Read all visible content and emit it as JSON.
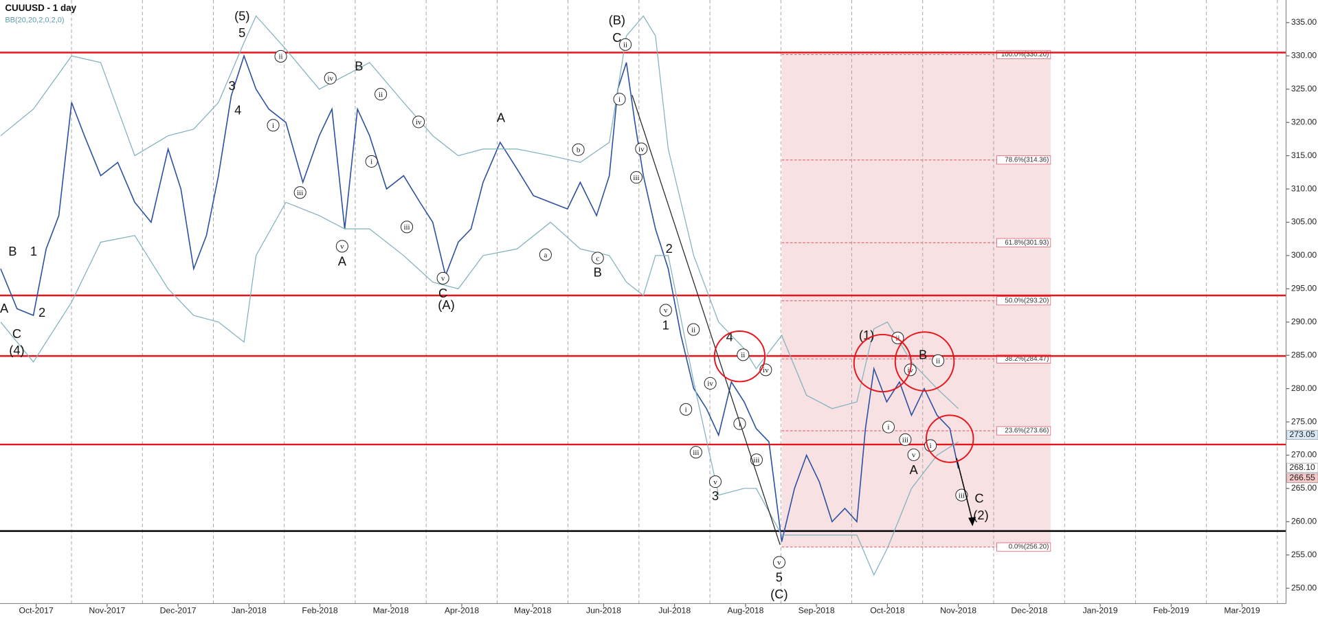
{
  "chart_data": {
    "type": "line",
    "title": "CUUUSD - 1 day",
    "subtitle": "BB(20,20,2,0,2,0)",
    "xlim": [
      -0.51,
      17.62
    ],
    "ylim": [
      247.7,
      338.4
    ],
    "xticks": [
      {
        "value": 0,
        "label": "Oct-2017"
      },
      {
        "value": 1,
        "label": "Nov-2017"
      },
      {
        "value": 2,
        "label": "Dec-2017"
      },
      {
        "value": 3,
        "label": "Jan-2018"
      },
      {
        "value": 4,
        "label": "Feb-2018"
      },
      {
        "value": 5,
        "label": "Mar-2018"
      },
      {
        "value": 6,
        "label": "Apr-2018"
      },
      {
        "value": 7,
        "label": "May-2018"
      },
      {
        "value": 8,
        "label": "Jun-2018"
      },
      {
        "value": 9,
        "label": "Jul-2018"
      },
      {
        "value": 10,
        "label": "Aug-2018"
      },
      {
        "value": 11,
        "label": "Sep-2018"
      },
      {
        "value": 12,
        "label": "Oct-2018"
      },
      {
        "value": 13,
        "label": "Nov-2018"
      },
      {
        "value": 14,
        "label": "Dec-2018"
      },
      {
        "value": 15,
        "label": "Jan-2019"
      },
      {
        "value": 16,
        "label": "Feb-2019"
      },
      {
        "value": 17,
        "label": "Mar-2019"
      }
    ],
    "yticks": [
      {
        "value": 250,
        "label": "250.00"
      },
      {
        "value": 255,
        "label": "255.00"
      },
      {
        "value": 260,
        "label": "260.00"
      },
      {
        "value": 265,
        "label": "265.00"
      },
      {
        "value": 270,
        "label": "270.00"
      },
      {
        "value": 275,
        "label": "275.00"
      },
      {
        "value": 280,
        "label": "280.00"
      },
      {
        "value": 285,
        "label": "285.00"
      },
      {
        "value": 290,
        "label": "290.00"
      },
      {
        "value": 295,
        "label": "295.00"
      },
      {
        "value": 300,
        "label": "300.00"
      },
      {
        "value": 305,
        "label": "305.00"
      },
      {
        "value": 310,
        "label": "310.00"
      },
      {
        "value": 315,
        "label": "315.00"
      },
      {
        "value": 320,
        "label": "320.00"
      },
      {
        "value": 325,
        "label": "325.00"
      },
      {
        "value": 330,
        "label": "330.00"
      },
      {
        "value": 335,
        "label": "335.00"
      }
    ],
    "grid": true,
    "series": [
      {
        "color": "#2b4fa0",
        "x": [
          -0.5,
          -0.27,
          -0.04,
          0.14,
          0.32,
          0.5,
          0.68,
          0.91,
          1.15,
          1.39,
          1.62,
          1.86,
          2.04,
          2.22,
          2.4,
          2.57,
          2.75,
          2.93,
          3.1,
          3.28,
          3.52,
          3.76,
          3.99,
          4.17,
          4.35,
          4.53,
          4.7,
          4.94,
          5.18,
          5.41,
          5.59,
          5.77,
          5.95,
          6.13,
          6.3,
          6.54,
          6.78,
          7.01,
          7.25,
          7.49,
          7.67,
          7.9,
          8.08,
          8.2,
          8.32,
          8.44,
          8.56,
          8.73,
          8.91,
          9.09,
          9.27,
          9.45,
          9.62,
          9.8,
          9.98,
          10.15,
          10.33,
          10.51,
          10.69,
          10.86,
          11.04,
          11.22,
          11.4,
          11.57,
          11.69,
          11.81,
          11.99,
          12.17,
          12.34,
          12.52,
          12.7,
          12.88,
          13.0
        ],
        "values": [
          298,
          292,
          291,
          301,
          306,
          323,
          318,
          312,
          314,
          308,
          305,
          316,
          310,
          298,
          303,
          312,
          324,
          330,
          325,
          322,
          320,
          311,
          318,
          322,
          304,
          322,
          318,
          310,
          312,
          308,
          305,
          297,
          302,
          304,
          311,
          317,
          313,
          309,
          308,
          307,
          311,
          306,
          312,
          325,
          329,
          320,
          312,
          304,
          298,
          288,
          280,
          277,
          273,
          281,
          278,
          274,
          272,
          257,
          265,
          270,
          266,
          260,
          262,
          260,
          274,
          283,
          278,
          281,
          276,
          280,
          276,
          274,
          268
        ]
      },
      {
        "color": "#7fb0bd",
        "x": [
          -0.5,
          -0.04,
          0.5,
          0.91,
          1.39,
          1.86,
          2.22,
          2.57,
          2.93,
          3.1,
          3.52,
          3.99,
          4.35,
          4.7,
          5.18,
          5.59,
          5.95,
          6.3,
          6.78,
          7.25,
          7.67,
          8.08,
          8.32,
          8.56,
          8.73,
          8.91,
          9.27,
          9.62,
          9.98,
          10.15,
          10.51,
          10.86,
          11.22,
          11.57,
          11.81,
          12.0,
          12.34,
          12.7,
          13.0
        ],
        "values": [
          318,
          322,
          330,
          329,
          315,
          318,
          319,
          323,
          332,
          336,
          331,
          325,
          327,
          329,
          323,
          318,
          315,
          316,
          316,
          315,
          314,
          317,
          333,
          336,
          333,
          316,
          300,
          290,
          286,
          283,
          288,
          279,
          277,
          278,
          289,
          290,
          284,
          280,
          277
        ]
      },
      {
        "color": "#7fb0bd",
        "x": [
          -0.5,
          -0.04,
          0.5,
          0.91,
          1.39,
          1.86,
          2.22,
          2.57,
          2.93,
          3.1,
          3.52,
          3.99,
          4.35,
          4.7,
          5.18,
          5.59,
          5.95,
          6.3,
          6.78,
          7.25,
          7.67,
          8.08,
          8.32,
          8.56,
          8.73,
          8.91,
          9.27,
          9.62,
          9.98,
          10.15,
          10.51,
          10.86,
          11.22,
          11.57,
          11.81,
          12.0,
          12.34,
          12.7,
          13.0
        ],
        "values": [
          290,
          284,
          293,
          302,
          303,
          295,
          291,
          290,
          287,
          300,
          308,
          306,
          304,
          304,
          300,
          296,
          295,
          300,
          301,
          305,
          301,
          300,
          296,
          294,
          300,
          300,
          281,
          264,
          265,
          265,
          258,
          258,
          258,
          258,
          252,
          256,
          265,
          270,
          272
        ]
      }
    ],
    "hlines": [
      {
        "value": 330.5,
        "color": "#e8141c"
      },
      {
        "value": 294,
        "color": "#e8141c"
      },
      {
        "value": 284.9,
        "color": "#e8141c"
      },
      {
        "value": 271.6,
        "color": "#e8141c"
      },
      {
        "value": 258.6,
        "color": "#000000"
      }
    ],
    "fib": {
      "x_range": [
        10.51,
        14.3
      ],
      "levels": [
        {
          "value": 330.2,
          "label": "100.0%(330.20)"
        },
        {
          "value": 314.36,
          "label": "78.6%(314.36)"
        },
        {
          "value": 301.93,
          "label": "61.8%(301.93)"
        },
        {
          "value": 293.2,
          "label": "50.0%(293.20)"
        },
        {
          "value": 284.47,
          "label": "38.2%(284.47)"
        },
        {
          "value": 273.66,
          "label": "23.6%(273.66)"
        },
        {
          "value": 256.2,
          "label": "0.0%(256.20)"
        }
      ]
    },
    "price_labels": [
      {
        "value": 273.05,
        "label": "273.05"
      },
      {
        "value": 268.1,
        "label": "268.10"
      },
      {
        "value": 266.55,
        "label": "266.55"
      }
    ],
    "annotations": [
      "A",
      "B",
      "1",
      "2",
      "C",
      "(4)",
      "(5)",
      "5",
      "3",
      "4",
      "ii",
      "i",
      "iii",
      "iv",
      "v",
      "A",
      "B",
      "ii",
      "i",
      "iii",
      "iv",
      "v",
      "C",
      "(A)",
      "A",
      "a",
      "b",
      "c",
      "B",
      "(B)",
      "C",
      "ii",
      "i",
      "iv",
      "iii",
      "2",
      "v",
      "1",
      "ii",
      "iv",
      "i",
      "iii",
      "v",
      "3",
      "4",
      "ii",
      "i",
      "iv",
      "iii",
      "v",
      "5",
      "(C)",
      "(1)",
      "ii",
      "iv",
      "B",
      "ii",
      "i",
      "iii",
      "i",
      "v",
      "A",
      "iii",
      "C",
      "(2)"
    ]
  }
}
